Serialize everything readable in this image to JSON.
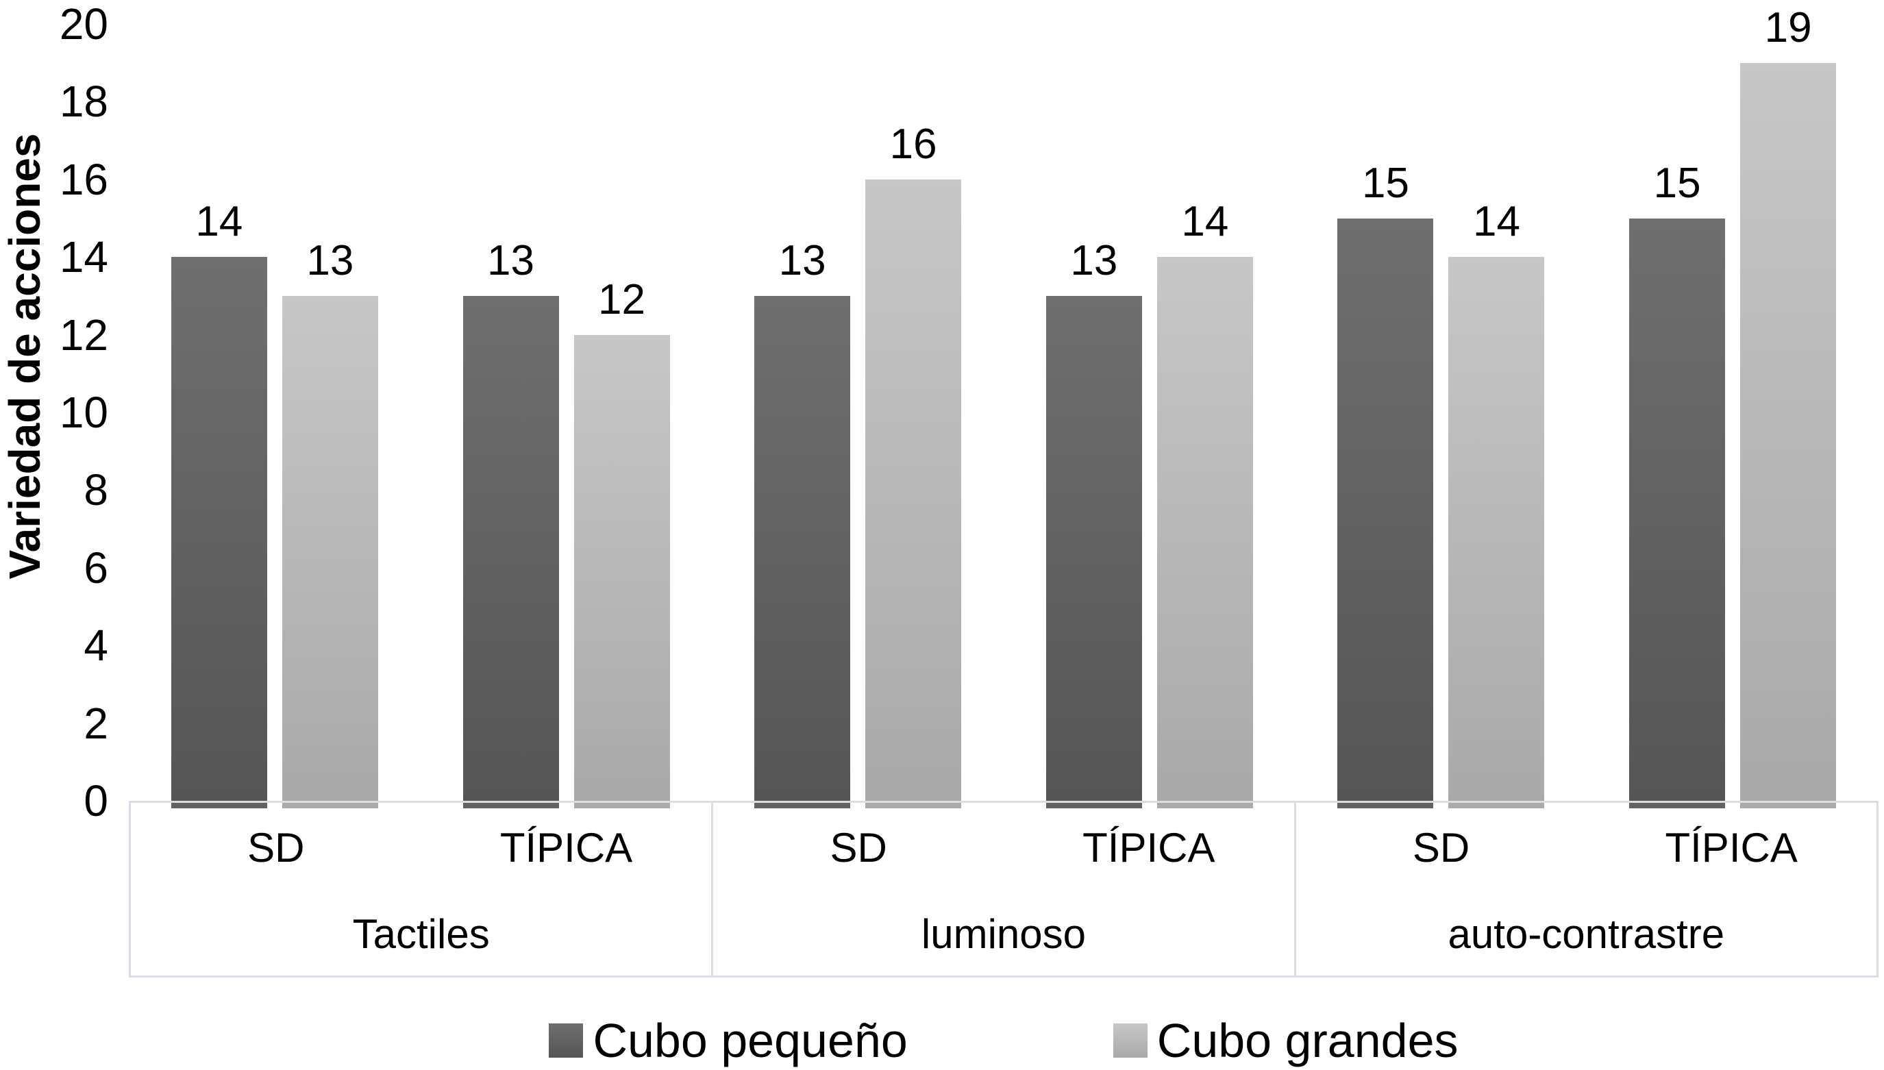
{
  "chart_data": {
    "type": "bar",
    "title": "",
    "ylabel": "Variedad de acciones",
    "xlabel": "",
    "ylim": [
      0,
      20
    ],
    "yticks": [
      0,
      2,
      4,
      6,
      8,
      10,
      12,
      14,
      16,
      18,
      20
    ],
    "grid": false,
    "legend_position": "bottom",
    "plot_background": "#ffffff",
    "axis_line_color": "#d9dee4",
    "text_color": "#000000",
    "group_labels": [
      "Tactiles",
      "luminoso",
      "auto-contrastre"
    ],
    "sub_labels_per_group": [
      [
        "SD",
        "TÍPICA"
      ],
      [
        "SD",
        "TÍPICA"
      ],
      [
        "SD",
        "TÍPICA"
      ]
    ],
    "series": [
      {
        "name": "Cubo pequeño",
        "values": [
          14,
          13,
          13,
          13,
          15,
          15
        ],
        "color_top": "#6f6f6f",
        "color_bottom": "#555555",
        "stub_color": "#474747"
      },
      {
        "name": "Cubo grandes",
        "values": [
          13,
          12,
          16,
          14,
          14,
          19
        ],
        "color_top": "#c7c7c7",
        "color_bottom": "#a9a9a9",
        "stub_color": "#9c9c9c"
      }
    ],
    "data_labels_visible": true
  }
}
